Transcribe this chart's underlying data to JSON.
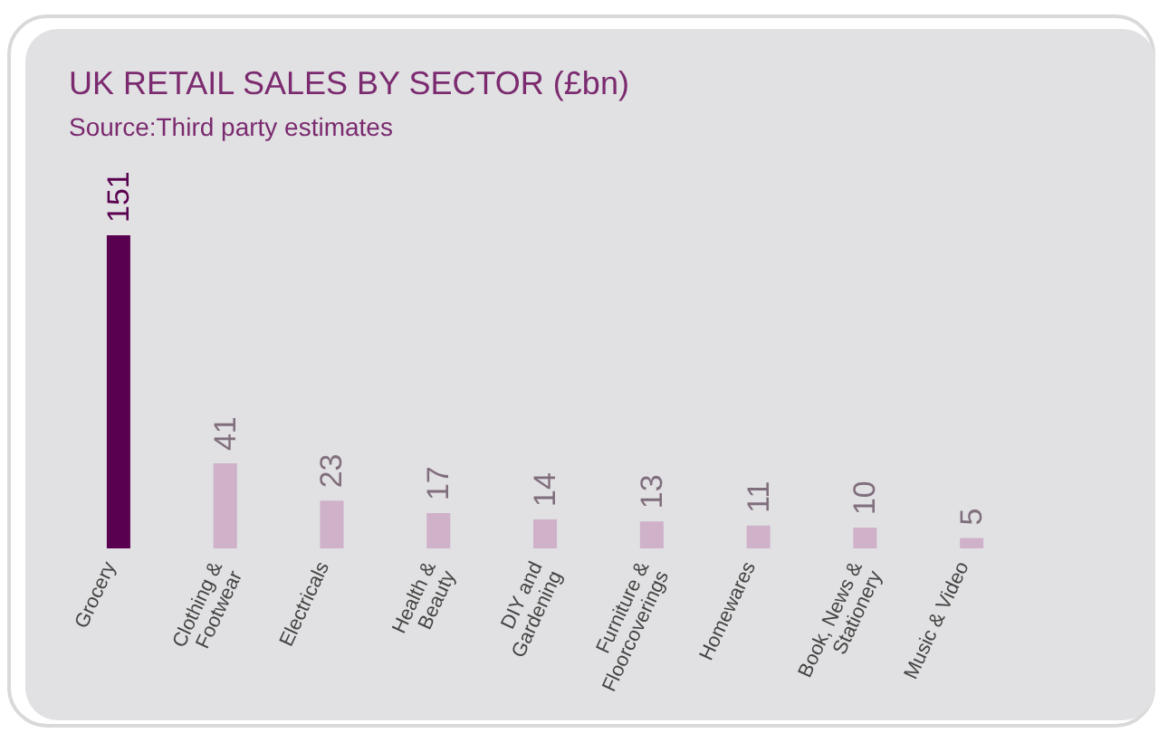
{
  "chart_data": {
    "type": "bar",
    "title": "UK RETAIL SALES BY SECTOR (£bn)",
    "subtitle": "Source:Third party estimates",
    "categories": [
      "Grocery",
      "Clothing &\nFootwear",
      "Electricals",
      "Health &\nBeauty",
      "DIY and\nGardening",
      "Furniture &\nFloorcoverings",
      "Homewares",
      "Book, News &\nStationery",
      "Music & Video"
    ],
    "values": [
      151,
      41,
      23,
      17,
      14,
      13,
      11,
      10,
      5
    ],
    "colors": [
      "#5a0050",
      "#cfb1c9",
      "#cfb1c9",
      "#cfb1c9",
      "#cfb1c9",
      "#cfb1c9",
      "#cfb1c9",
      "#cfb1c9",
      "#cfb1c9"
    ],
    "data_labels": true
  }
}
